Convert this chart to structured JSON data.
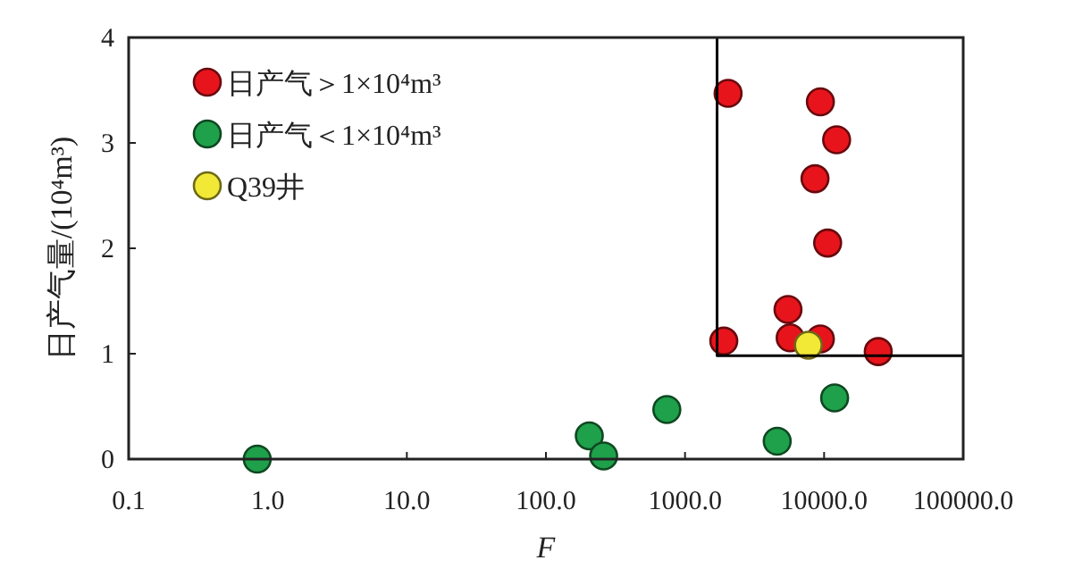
{
  "chart_data": {
    "type": "scatter",
    "xlabel": "F",
    "ylabel": "日产气量/(10⁴m³)",
    "log": "x",
    "xlim": [
      0.1,
      100000
    ],
    "xticks": [
      {
        "value": 0.1,
        "label": "0.1"
      },
      {
        "value": 1,
        "label": "1.0"
      },
      {
        "value": 10,
        "label": "10.0"
      },
      {
        "value": 100,
        "label": "100.0"
      },
      {
        "value": 1000,
        "label": "1000.0"
      },
      {
        "value": 10000,
        "label": "10000.0"
      },
      {
        "value": 100000,
        "label": "100000.0"
      }
    ],
    "ylim": [
      0,
      4
    ],
    "yticks": [
      0,
      1,
      2,
      3,
      4
    ],
    "legend": "top left",
    "marker": "circle",
    "series": [
      {
        "name": "日产气＞1×10⁴m³",
        "color": "#e8141c",
        "x": [
          2040,
          9400,
          12300,
          8600,
          10600,
          5500,
          5700,
          9400,
          1900,
          24500
        ],
        "values": [
          3.47,
          3.39,
          3.03,
          2.66,
          2.05,
          1.42,
          1.15,
          1.14,
          1.12,
          1.02
        ]
      },
      {
        "name": "日产气＜1×10⁴m³",
        "color": "#1fa04a",
        "x": [
          0.84,
          205,
          260,
          740,
          4600,
          11900
        ],
        "values": [
          0,
          0.22,
          0.03,
          0.47,
          0.17,
          0.58
        ]
      },
      {
        "name": "Q39井",
        "color": "#f2e936",
        "x": [
          7700
        ],
        "values": [
          1.08
        ]
      },
      {
        "type": "line",
        "marker": "none",
        "color": "#000000",
        "x": [
          1700,
          1700,
          100000
        ],
        "values": [
          4,
          0.98,
          0.98
        ]
      }
    ]
  }
}
